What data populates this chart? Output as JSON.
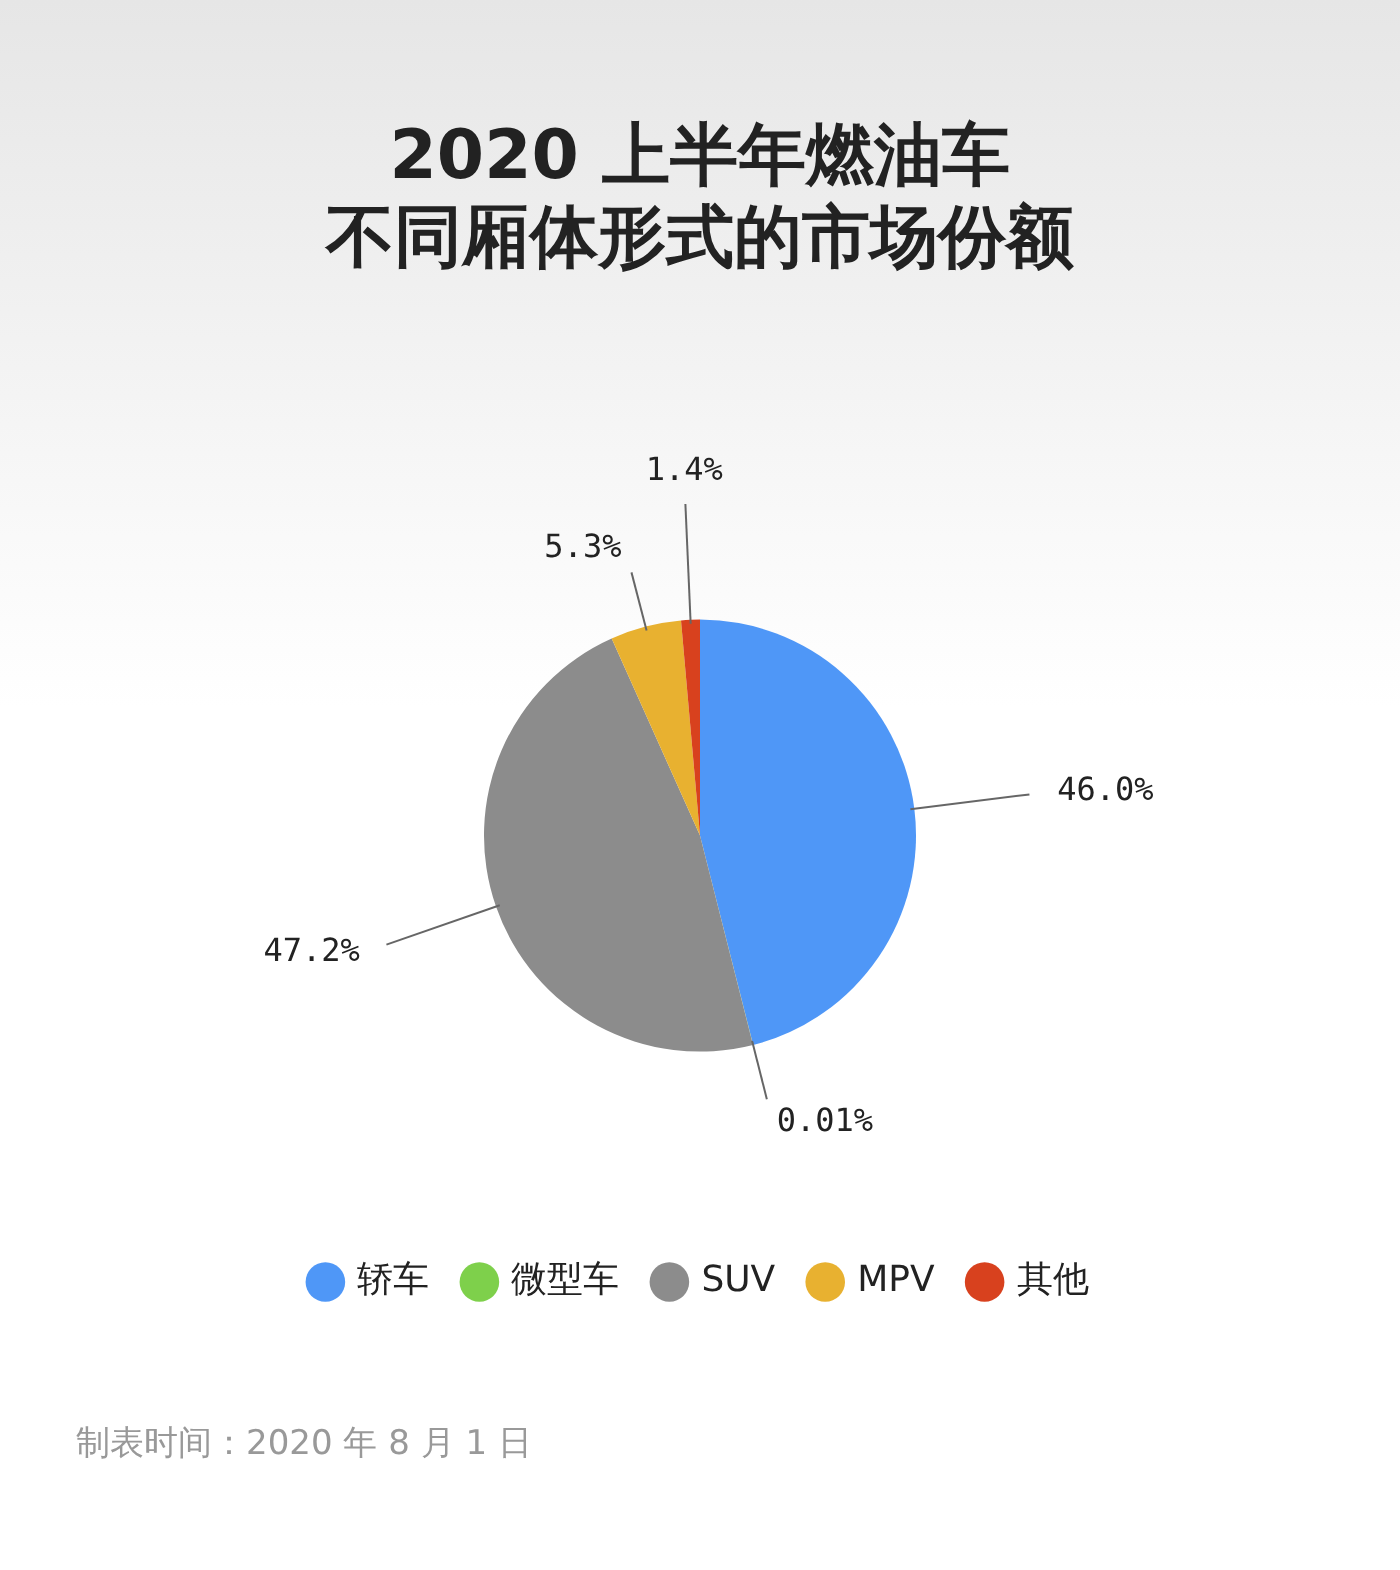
{
  "chart_data": {
    "type": "pie",
    "title": "2020 上半年燃油车不同厢体形式的市场份额",
    "categories": [
      "轿车",
      "微型车",
      "SUV",
      "MPV",
      "其他"
    ],
    "values": [
      46.0,
      0.01,
      47.2,
      5.3,
      1.4
    ],
    "value_labels": [
      "46.0%",
      "0.01%",
      "47.2%",
      "5.3%",
      "1.4%"
    ],
    "colors": [
      "#4f97f7",
      "#7ed04b",
      "#8c8c8c",
      "#e8b130",
      "#d8411e"
    ],
    "legend": "bottom",
    "annotations": [
      "制表时间：2020 年 8 月 1 日"
    ]
  }
}
